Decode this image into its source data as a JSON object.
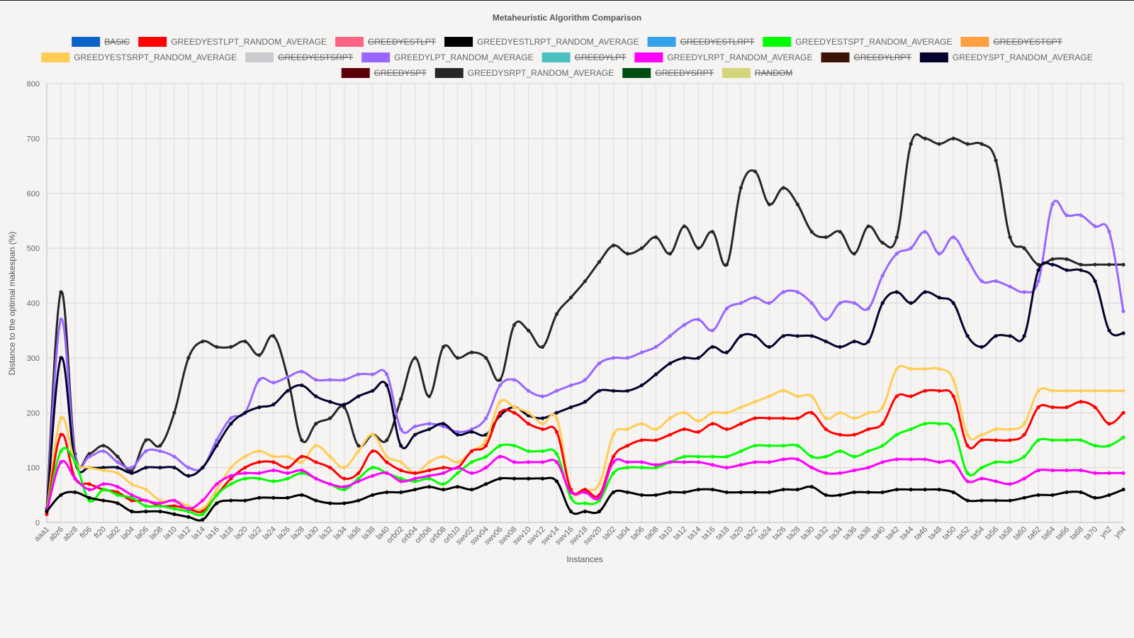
{
  "chart_data": {
    "type": "line",
    "title": "Metaheuristic Algorithm Comparison",
    "xlabel": "Instances",
    "ylabel": "Distance to the optimal makespan (%)",
    "ylim": [
      0,
      800
    ],
    "yticks": [
      0,
      100,
      200,
      300,
      400,
      500,
      600,
      700,
      800
    ],
    "grid": true,
    "legend_position": "top",
    "x_tick_labels": [
      "aaa1",
      "abz6",
      "abz8",
      "ft06",
      "ft20",
      "la02",
      "la04",
      "la06",
      "la08",
      "la10",
      "la12",
      "la14",
      "la16",
      "la18",
      "la20",
      "la22",
      "la24",
      "la26",
      "la28",
      "la30",
      "la32",
      "la34",
      "la36",
      "la38",
      "la40",
      "orb02",
      "orb04",
      "orb06",
      "orb08",
      "orb10",
      "swv02",
      "swv04",
      "swv06",
      "swv08",
      "swv10",
      "swv12",
      "swv14",
      "swv16",
      "swv18",
      "swv20",
      "ta02",
      "ta04",
      "ta06",
      "ta08",
      "ta10",
      "ta12",
      "ta14",
      "ta16",
      "ta18",
      "ta20",
      "ta22",
      "ta24",
      "ta26",
      "ta28",
      "ta30",
      "ta32",
      "ta34",
      "ta36",
      "ta38",
      "ta40",
      "ta42",
      "ta44",
      "ta46",
      "ta48",
      "ta50",
      "ta52",
      "ta54",
      "ta56",
      "ta58",
      "ta60",
      "ta62",
      "ta64",
      "ta66",
      "ta68",
      "ta70",
      "yn2",
      "yn4"
    ],
    "legend": [
      {
        "name": "BASIC",
        "color": "#0b63c9",
        "hidden": true
      },
      {
        "name": "GREEDYESTLPT_RANDOM_AVERAGE",
        "color": "#ff0000",
        "hidden": false
      },
      {
        "name": "GREEDYESTLPT",
        "color": "#ff6384",
        "hidden": true
      },
      {
        "name": "GREEDYESTLRPT_RANDOM_AVERAGE",
        "color": "#000000",
        "hidden": false
      },
      {
        "name": "GREEDYESTLRPT",
        "color": "#36a2eb",
        "hidden": true
      },
      {
        "name": "GREEDYESTSPT_RANDOM_AVERAGE",
        "color": "#00ff00",
        "hidden": false
      },
      {
        "name": "GREEDYESTSPT",
        "color": "#ff9f40",
        "hidden": true
      },
      {
        "name": "GREEDYESTSRPT_RANDOM_AVERAGE",
        "color": "#ffcd56",
        "hidden": false
      },
      {
        "name": "GREEDYESTSRPT",
        "color": "#c9cbcf",
        "hidden": true
      },
      {
        "name": "GREEDYLPT_RANDOM_AVERAGE",
        "color": "#9966ff",
        "hidden": false
      },
      {
        "name": "GREEDYLPT",
        "color": "#4bc0c0",
        "hidden": true
      },
      {
        "name": "GREEDYLRPT_RANDOM_AVERAGE",
        "color": "#ff00ff",
        "hidden": false
      },
      {
        "name": "GREEDYLRPT",
        "color": "#3b1305",
        "hidden": true
      },
      {
        "name": "GREEDYSPT_RANDOM_AVERAGE",
        "color": "#03032e",
        "hidden": false
      },
      {
        "name": "GREEDYSPT",
        "color": "#5c0008",
        "hidden": true
      },
      {
        "name": "GREEDYSRPT_RANDOM_AVERAGE",
        "color": "#262626",
        "hidden": false
      },
      {
        "name": "GREEDYSRPT",
        "color": "#004d12",
        "hidden": true
      },
      {
        "name": "RANDOM",
        "color": "#d4d47a",
        "hidden": true
      }
    ],
    "series": [
      {
        "name": "GREEDYSRPT_RANDOM_AVERAGE",
        "color": "#262626",
        "values": [
          25,
          420,
          125,
          125,
          140,
          120,
          95,
          150,
          140,
          200,
          300,
          330,
          320,
          320,
          330,
          305,
          340,
          265,
          150,
          180,
          190,
          210,
          140,
          160,
          150,
          225,
          300,
          230,
          320,
          300,
          310,
          300,
          260,
          360,
          350,
          320,
          380,
          410,
          440,
          475,
          505,
          490,
          500,
          520,
          490,
          540,
          500,
          530,
          470,
          610,
          640,
          580,
          610,
          580,
          530,
          520,
          530,
          490,
          540,
          510,
          520,
          690,
          700,
          690,
          700,
          690,
          690,
          660,
          520,
          500,
          470,
          480,
          480,
          470,
          470,
          470,
          470
        ]
      },
      {
        "name": "GREEDYLPT_RANDOM_AVERAGE",
        "color": "#9966ff",
        "values": [
          20,
          370,
          120,
          120,
          130,
          110,
          100,
          130,
          130,
          120,
          100,
          100,
          150,
          190,
          200,
          260,
          255,
          265,
          275,
          260,
          260,
          260,
          270,
          270,
          270,
          170,
          175,
          180,
          175,
          165,
          170,
          190,
          250,
          260,
          240,
          230,
          240,
          250,
          260,
          290,
          300,
          300,
          310,
          320,
          340,
          360,
          370,
          350,
          390,
          400,
          410,
          400,
          420,
          420,
          400,
          370,
          400,
          400,
          390,
          450,
          490,
          500,
          530,
          490,
          520,
          480,
          440,
          440,
          430,
          420,
          440,
          580,
          560,
          560,
          540,
          530,
          385
        ]
      },
      {
        "name": "GREEDYSPT_RANDOM_AVERAGE",
        "color": "#03032e",
        "values": [
          20,
          300,
          110,
          100,
          100,
          100,
          90,
          100,
          100,
          100,
          85,
          100,
          140,
          180,
          200,
          210,
          215,
          240,
          250,
          230,
          220,
          215,
          230,
          240,
          250,
          140,
          160,
          170,
          180,
          160,
          165,
          160,
          195,
          210,
          195,
          190,
          200,
          210,
          220,
          240,
          240,
          240,
          250,
          270,
          290,
          300,
          300,
          320,
          310,
          340,
          340,
          320,
          340,
          340,
          340,
          330,
          320,
          330,
          330,
          400,
          420,
          400,
          420,
          410,
          400,
          340,
          320,
          340,
          340,
          340,
          460,
          470,
          460,
          460,
          440,
          350,
          345
        ]
      },
      {
        "name": "GREEDYESTSRPT_RANDOM_AVERAGE",
        "color": "#ffcd56",
        "values": [
          20,
          190,
          110,
          100,
          95,
          90,
          70,
          60,
          40,
          40,
          30,
          25,
          60,
          100,
          120,
          130,
          120,
          120,
          110,
          140,
          120,
          100,
          130,
          160,
          120,
          110,
          90,
          110,
          120,
          110,
          130,
          150,
          220,
          210,
          200,
          180,
          190,
          60,
          60,
          70,
          160,
          170,
          180,
          170,
          190,
          200,
          185,
          200,
          200,
          210,
          220,
          230,
          240,
          230,
          230,
          190,
          200,
          190,
          200,
          210,
          280,
          280,
          280,
          280,
          260,
          160,
          160,
          170,
          170,
          180,
          240,
          240,
          240,
          240,
          240,
          240,
          240
        ]
      },
      {
        "name": "GREEDYESTLPT_RANDOM_AVERAGE",
        "color": "#ff0000",
        "values": [
          15,
          160,
          80,
          70,
          60,
          55,
          40,
          40,
          30,
          30,
          25,
          20,
          50,
          80,
          100,
          110,
          110,
          100,
          120,
          110,
          100,
          80,
          90,
          130,
          110,
          95,
          90,
          95,
          100,
          100,
          130,
          140,
          200,
          200,
          180,
          170,
          165,
          60,
          60,
          50,
          120,
          140,
          150,
          150,
          160,
          170,
          165,
          180,
          170,
          180,
          190,
          190,
          190,
          190,
          200,
          170,
          160,
          160,
          170,
          180,
          230,
          230,
          240,
          240,
          230,
          140,
          150,
          150,
          150,
          160,
          210,
          210,
          210,
          220,
          210,
          180,
          200
        ]
      },
      {
        "name": "GREEDYESTSPT_RANDOM_AVERAGE",
        "color": "#00ff00",
        "values": [
          20,
          130,
          110,
          40,
          60,
          50,
          45,
          30,
          30,
          25,
          20,
          15,
          50,
          70,
          80,
          80,
          75,
          80,
          90,
          80,
          70,
          60,
          80,
          100,
          90,
          80,
          75,
          80,
          70,
          90,
          110,
          120,
          140,
          140,
          130,
          130,
          125,
          45,
          35,
          40,
          90,
          100,
          100,
          100,
          110,
          120,
          120,
          120,
          120,
          130,
          140,
          140,
          140,
          140,
          120,
          120,
          130,
          120,
          130,
          140,
          160,
          170,
          180,
          180,
          170,
          90,
          100,
          110,
          110,
          120,
          150,
          150,
          150,
          150,
          140,
          140,
          155
        ]
      },
      {
        "name": "GREEDYLRPT_RANDOM_AVERAGE",
        "color": "#ff00ff",
        "values": [
          20,
          110,
          80,
          60,
          70,
          65,
          50,
          40,
          35,
          40,
          25,
          40,
          70,
          85,
          90,
          90,
          95,
          90,
          95,
          80,
          70,
          65,
          75,
          85,
          90,
          75,
          80,
          85,
          90,
          100,
          90,
          100,
          120,
          110,
          110,
          110,
          110,
          55,
          55,
          45,
          110,
          110,
          110,
          105,
          110,
          110,
          110,
          105,
          100,
          105,
          110,
          110,
          115,
          115,
          100,
          90,
          90,
          95,
          100,
          110,
          115,
          115,
          115,
          110,
          110,
          75,
          80,
          75,
          70,
          80,
          95,
          95,
          95,
          95,
          90,
          90,
          90
        ]
      },
      {
        "name": "GREEDYESTLRPT_RANDOM_AVERAGE",
        "color": "#000000",
        "values": [
          20,
          50,
          55,
          45,
          40,
          35,
          20,
          20,
          20,
          15,
          10,
          5,
          35,
          40,
          40,
          45,
          45,
          45,
          50,
          40,
          35,
          35,
          40,
          50,
          55,
          55,
          60,
          65,
          60,
          65,
          60,
          70,
          80,
          80,
          80,
          80,
          75,
          20,
          20,
          20,
          55,
          55,
          50,
          50,
          55,
          55,
          60,
          60,
          55,
          55,
          55,
          55,
          60,
          60,
          65,
          50,
          50,
          55,
          55,
          55,
          60,
          60,
          60,
          60,
          55,
          40,
          40,
          40,
          40,
          45,
          50,
          50,
          55,
          55,
          45,
          50,
          60
        ]
      }
    ]
  }
}
